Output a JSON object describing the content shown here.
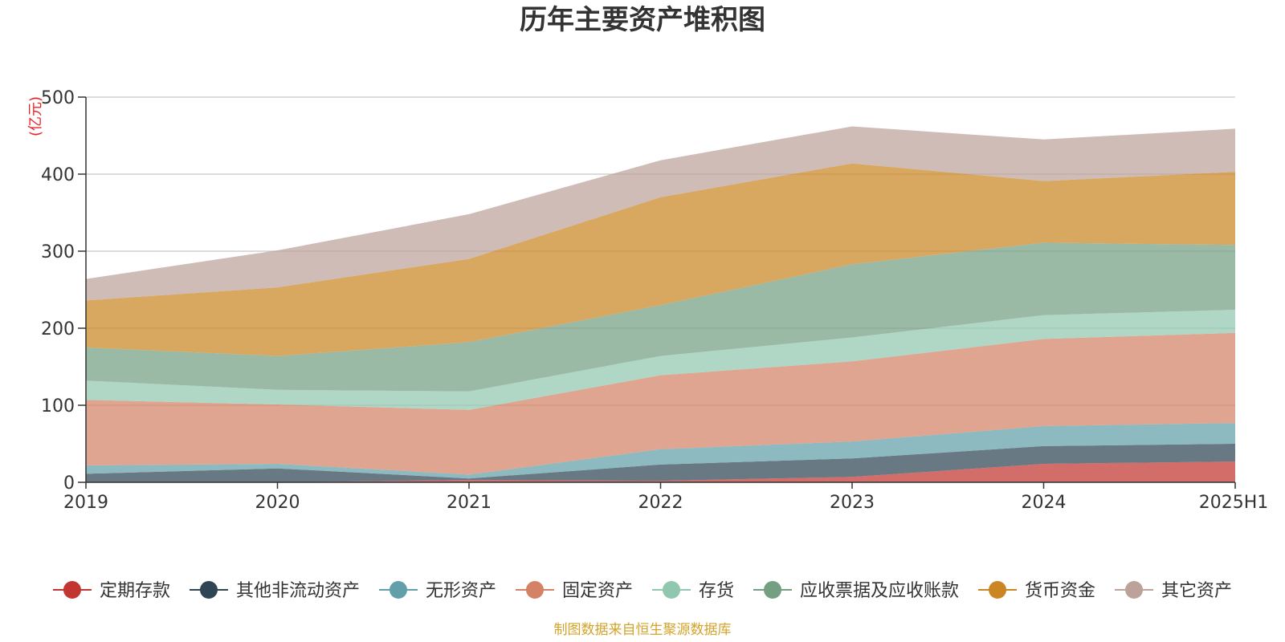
{
  "chart_data": {
    "type": "area",
    "stacked": true,
    "title": "历年主要资产堆积图",
    "unit": "(亿元)",
    "categories": [
      "2019",
      "2020",
      "2021",
      "2022",
      "2023",
      "2024",
      "2025H1"
    ],
    "y_ticks": [
      "0",
      "100",
      "200",
      "300",
      "400",
      "500"
    ],
    "ylim": [
      0,
      500
    ],
    "grid": true,
    "legend_position": "bottom",
    "series": [
      {
        "name": "定期存款",
        "color": "#c23531",
        "values": [
          0,
          0,
          3,
          2,
          7,
          24,
          27
        ]
      },
      {
        "name": "其他非流动资产",
        "color": "#2f4554",
        "values": [
          11,
          18,
          2,
          21,
          24,
          23,
          23
        ]
      },
      {
        "name": "无形资产",
        "color": "#61a0a8",
        "values": [
          11,
          6,
          5,
          20,
          22,
          26,
          27
        ]
      },
      {
        "name": "固定资产",
        "color": "#d48265",
        "values": [
          85,
          77,
          84,
          96,
          104,
          113,
          117
        ]
      },
      {
        "name": "存货",
        "color": "#91c7ae",
        "values": [
          25,
          19,
          24,
          25,
          31,
          31,
          30
        ]
      },
      {
        "name": "应收票据及应收账款",
        "color": "#749f83",
        "values": [
          43,
          44,
          64,
          66,
          95,
          94,
          84
        ]
      },
      {
        "name": "货币资金",
        "color": "#ca8622",
        "values": [
          61,
          89,
          108,
          140,
          131,
          80,
          95
        ]
      },
      {
        "name": "其它资产",
        "color": "#bda29a",
        "values": [
          28,
          48,
          58,
          48,
          48,
          54,
          56
        ]
      }
    ],
    "source_note": "制图数据来自恒生聚源数据库"
  }
}
